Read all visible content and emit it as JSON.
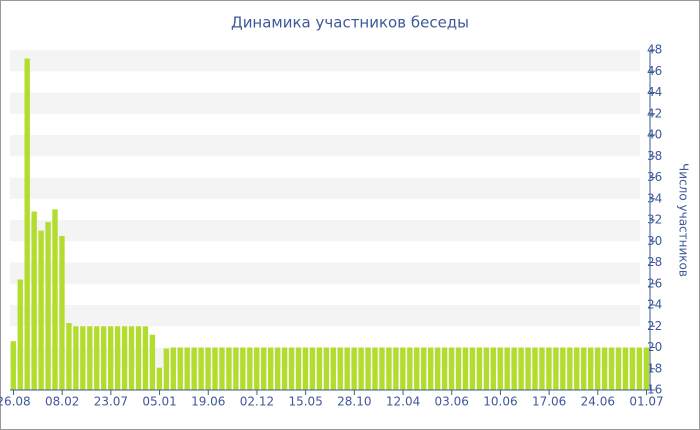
{
  "chart_data": {
    "type": "bar",
    "title": "Динамика участников беседы",
    "y_label": "Число участников",
    "categories": [
      "26.08",
      null,
      null,
      null,
      null,
      null,
      null,
      "08.02",
      null,
      null,
      null,
      null,
      null,
      null,
      "23.07",
      null,
      null,
      null,
      null,
      null,
      null,
      "05.01",
      null,
      null,
      null,
      null,
      null,
      null,
      "19.06",
      null,
      null,
      null,
      null,
      null,
      null,
      "02.12",
      null,
      null,
      null,
      null,
      null,
      null,
      "15.05",
      null,
      null,
      null,
      null,
      null,
      null,
      "28.10",
      null,
      null,
      null,
      null,
      null,
      null,
      "12.04",
      null,
      null,
      null,
      null,
      null,
      null,
      "03.06",
      null,
      null,
      null,
      null,
      null,
      null,
      "10.06",
      null,
      null,
      null,
      null,
      null,
      null,
      "17.06",
      null,
      null,
      null,
      null,
      null,
      null,
      "24.06",
      null,
      null,
      null,
      null,
      null,
      null,
      "01.07"
    ],
    "values": [
      20.6,
      26.4,
      47.2,
      32.8,
      31,
      31.8,
      33,
      30.5,
      22.3,
      22,
      22,
      22,
      22,
      22,
      22,
      22,
      22,
      22,
      22,
      22,
      21.2,
      18.1,
      19.9,
      20,
      20,
      20,
      20,
      20,
      20,
      20,
      20,
      20,
      20,
      20,
      20,
      20,
      20,
      20,
      20,
      20,
      20,
      20,
      20,
      20,
      20,
      20,
      20,
      20,
      20,
      20,
      20,
      20,
      20,
      20,
      20,
      20,
      20,
      20,
      20,
      20,
      20,
      20,
      20,
      20,
      20,
      20,
      20,
      20,
      20,
      20,
      20,
      20,
      20,
      20,
      20,
      20,
      20,
      20,
      20,
      20,
      20,
      20,
      20,
      20,
      20,
      20,
      20,
      20,
      20,
      20,
      20,
      20
    ],
    "color": "#b2dc2e",
    "ylim": [
      16,
      48
    ],
    "yticks": [
      16,
      18,
      20,
      22,
      24,
      26,
      28,
      30,
      32,
      34,
      36,
      38,
      40,
      42,
      44,
      46,
      48
    ],
    "y_axis_side": "right",
    "grid": true
  }
}
